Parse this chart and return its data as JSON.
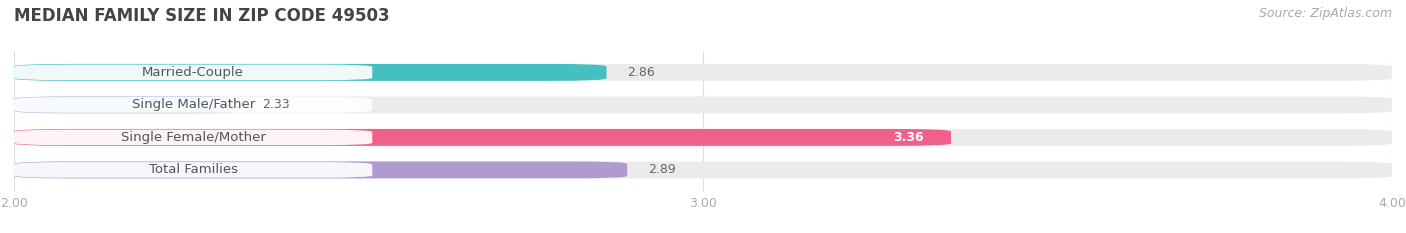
{
  "title": "Median Family Size in Zip Code 49503",
  "title_upper": "MEDIAN FAMILY SIZE IN ZIP CODE 49503",
  "source": "Source: ZipAtlas.com",
  "categories": [
    "Married-Couple",
    "Single Male/Father",
    "Single Female/Mother",
    "Total Families"
  ],
  "values": [
    2.86,
    2.33,
    3.36,
    2.89
  ],
  "bar_colors": [
    "#45bfbf",
    "#aac4e8",
    "#f0608a",
    "#b09ad0"
  ],
  "bar_bg_color": "#ebebeb",
  "xlim": [
    2.0,
    4.0
  ],
  "xticks": [
    2.0,
    3.0,
    4.0
  ],
  "xtick_labels": [
    "2.00",
    "3.00",
    "4.00"
  ],
  "bar_height": 0.52,
  "background_color": "#ffffff",
  "title_fontsize": 12,
  "label_fontsize": 9.5,
  "value_fontsize": 9,
  "source_fontsize": 9,
  "tick_fontsize": 9,
  "value_label_color_inside": "#ffffff",
  "value_label_color_outside": "#666666",
  "label_text_color": "#555555",
  "pill_color": "#ffffff",
  "pill_alpha": 0.92
}
